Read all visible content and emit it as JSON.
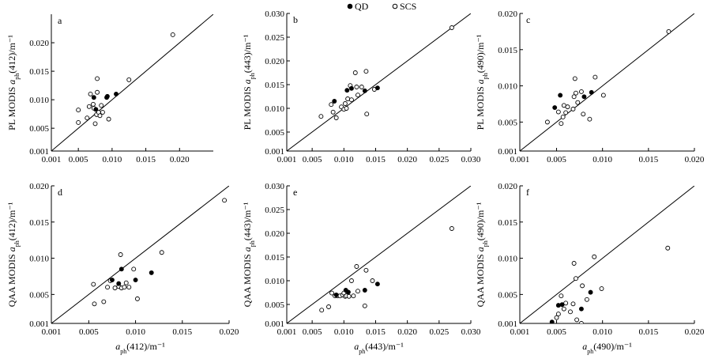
{
  "legend": {
    "items": [
      {
        "label": "QD",
        "marker": "filled-circle"
      },
      {
        "label": "SCS",
        "marker": "open-circle"
      }
    ],
    "placement": "top-center"
  },
  "chart_data": [
    {
      "panel": "a",
      "type": "scatter",
      "xlabel": "",
      "ylabel": "PL MODIS a_ph(412)/m⁻¹",
      "xlim": [
        0.001,
        0.025
      ],
      "ylim": [
        0.001,
        0.025
      ],
      "xticks": [
        "0.001",
        "0.005",
        "0.010",
        "0.015",
        "0.020"
      ],
      "yticks": [
        "0.001",
        "0.005",
        "0.010",
        "0.015",
        "0.020"
      ],
      "one_to_one_line": true,
      "series": [
        {
          "name": "QD",
          "points": [
            [
              0.0073,
              0.0104
            ],
            [
              0.0076,
              0.0083
            ],
            [
              0.0092,
              0.0104
            ],
            [
              0.0093,
              0.0106
            ],
            [
              0.0106,
              0.011
            ]
          ]
        },
        {
          "name": "SCS",
          "points": [
            [
              0.005,
              0.006
            ],
            [
              0.005,
              0.0082
            ],
            [
              0.0063,
              0.0068
            ],
            [
              0.0066,
              0.0088
            ],
            [
              0.0068,
              0.011
            ],
            [
              0.0072,
              0.0092
            ],
            [
              0.0073,
              0.0085
            ],
            [
              0.0075,
              0.0058
            ],
            [
              0.0077,
              0.0074
            ],
            [
              0.0078,
              0.0113
            ],
            [
              0.0078,
              0.0137
            ],
            [
              0.008,
              0.0078
            ],
            [
              0.0082,
              0.0072
            ],
            [
              0.0084,
              0.009
            ],
            [
              0.0086,
              0.0078
            ],
            [
              0.0095,
              0.0066
            ],
            [
              0.0125,
              0.0135
            ],
            [
              0.019,
              0.0214
            ]
          ]
        }
      ]
    },
    {
      "panel": "b",
      "type": "scatter",
      "xlabel": "",
      "ylabel": "PL MODIS a_ph(443)/m⁻¹",
      "xlim": [
        0.001,
        0.03
      ],
      "ylim": [
        0.001,
        0.03
      ],
      "xticks": [
        "0.001",
        "0.005",
        "0.010",
        "0.015",
        "0.020",
        "0.025",
        "0.030"
      ],
      "yticks": [
        "0.001",
        "0.005",
        "0.010",
        "0.015",
        "0.020",
        "0.025",
        "0.030"
      ],
      "one_to_one_line": true,
      "series": [
        {
          "name": "QD",
          "points": [
            [
              0.0085,
              0.0115
            ],
            [
              0.0105,
              0.0138
            ],
            [
              0.0112,
              0.0142
            ],
            [
              0.0133,
              0.0137
            ],
            [
              0.0153,
              0.0143
            ]
          ]
        },
        {
          "name": "SCS",
          "points": [
            [
              0.0064,
              0.0083
            ],
            [
              0.008,
              0.0108
            ],
            [
              0.0083,
              0.0092
            ],
            [
              0.0088,
              0.008
            ],
            [
              0.0096,
              0.0103
            ],
            [
              0.01,
              0.0098
            ],
            [
              0.0102,
              0.011
            ],
            [
              0.0104,
              0.01
            ],
            [
              0.0106,
              0.012
            ],
            [
              0.011,
              0.0148
            ],
            [
              0.0112,
              0.0118
            ],
            [
              0.0118,
              0.0175
            ],
            [
              0.012,
              0.0145
            ],
            [
              0.0122,
              0.0128
            ],
            [
              0.0128,
              0.0145
            ],
            [
              0.0135,
              0.0178
            ],
            [
              0.0136,
              0.0088
            ],
            [
              0.0148,
              0.014
            ],
            [
              0.027,
              0.027
            ]
          ]
        }
      ]
    },
    {
      "panel": "c",
      "type": "scatter",
      "xlabel": "",
      "ylabel": "PL MODIS a_ph(490)/m⁻¹",
      "xlim": [
        0.001,
        0.02
      ],
      "ylim": [
        0.001,
        0.02
      ],
      "xticks": [
        "0.001",
        "0.005",
        "0.010",
        "0.015",
        "0.020"
      ],
      "yticks": [
        "0.001",
        "0.005",
        "0.010",
        "0.015",
        "0.020"
      ],
      "one_to_one_line": true,
      "series": [
        {
          "name": "QD",
          "points": [
            [
              0.0048,
              0.007
            ],
            [
              0.0054,
              0.0087
            ],
            [
              0.008,
              0.0085
            ],
            [
              0.0088,
              0.0091
            ]
          ]
        },
        {
          "name": "SCS",
          "points": [
            [
              0.004,
              0.005
            ],
            [
              0.0052,
              0.0064
            ],
            [
              0.0055,
              0.0048
            ],
            [
              0.0057,
              0.0057
            ],
            [
              0.0058,
              0.0073
            ],
            [
              0.006,
              0.0063
            ],
            [
              0.0062,
              0.0071
            ],
            [
              0.0068,
              0.0068
            ],
            [
              0.0069,
              0.0085
            ],
            [
              0.007,
              0.011
            ],
            [
              0.0071,
              0.009
            ],
            [
              0.0073,
              0.0077
            ],
            [
              0.0077,
              0.0092
            ],
            [
              0.0079,
              0.0061
            ],
            [
              0.0086,
              0.0054
            ],
            [
              0.0092,
              0.0112
            ],
            [
              0.0101,
              0.0087
            ],
            [
              0.0172,
              0.0175
            ]
          ]
        }
      ]
    },
    {
      "panel": "d",
      "type": "scatter",
      "xlabel": "a_ph(412)/m⁻¹",
      "ylabel": "QAA MODIS a_ph(412)/m⁻¹",
      "xlim": [
        0.001,
        0.02
      ],
      "ylim": [
        0.001,
        0.02
      ],
      "xticks": [
        "0.001",
        "0.005",
        "0.010",
        "0.015",
        "0.020"
      ],
      "yticks": [
        "0.001",
        "0.005",
        "0.010",
        "0.015",
        "0.020"
      ],
      "one_to_one_line": true,
      "series": [
        {
          "name": "QD",
          "points": [
            [
              0.0075,
              0.007
            ],
            [
              0.0082,
              0.0065
            ],
            [
              0.0085,
              0.0085
            ],
            [
              0.01,
              0.007
            ],
            [
              0.0117,
              0.008
            ]
          ]
        },
        {
          "name": "SCS",
          "points": [
            [
              0.0055,
              0.0064
            ],
            [
              0.0056,
              0.0037
            ],
            [
              0.0066,
              0.004
            ],
            [
              0.007,
              0.006
            ],
            [
              0.0073,
              0.0069
            ],
            [
              0.0078,
              0.0059
            ],
            [
              0.0082,
              0.0061
            ],
            [
              0.0084,
              0.0105
            ],
            [
              0.0085,
              0.0059
            ],
            [
              0.0088,
              0.006
            ],
            [
              0.009,
              0.0066
            ],
            [
              0.0093,
              0.006
            ],
            [
              0.0098,
              0.0085
            ],
            [
              0.0102,
              0.0044
            ],
            [
              0.0128,
              0.0108
            ],
            [
              0.0195,
              0.018
            ]
          ]
        }
      ]
    },
    {
      "panel": "e",
      "type": "scatter",
      "xlabel": "a_ph(443)/m⁻¹",
      "ylabel": "QAA MODIS a_ph(443)/m⁻¹",
      "xlim": [
        0.001,
        0.03
      ],
      "ylim": [
        0.001,
        0.03
      ],
      "xticks": [
        "0.001",
        "0.005",
        "0.010",
        "0.015",
        "0.020",
        "0.025",
        "0.030"
      ],
      "yticks": [
        "0.001",
        "0.005",
        "0.010",
        "0.015",
        "0.020",
        "0.025",
        "0.030"
      ],
      "one_to_one_line": true,
      "series": [
        {
          "name": "QD",
          "points": [
            [
              0.0088,
              0.007
            ],
            [
              0.0103,
              0.008
            ],
            [
              0.0107,
              0.0076
            ],
            [
              0.0133,
              0.008
            ],
            [
              0.0153,
              0.0093
            ]
          ]
        },
        {
          "name": "SCS",
          "points": [
            [
              0.0065,
              0.0038
            ],
            [
              0.0076,
              0.0045
            ],
            [
              0.0081,
              0.0074
            ],
            [
              0.0086,
              0.0068
            ],
            [
              0.009,
              0.0068
            ],
            [
              0.0094,
              0.0068
            ],
            [
              0.0098,
              0.007
            ],
            [
              0.01,
              0.0074
            ],
            [
              0.0102,
              0.0067
            ],
            [
              0.0104,
              0.0068
            ],
            [
              0.0108,
              0.0067
            ],
            [
              0.0112,
              0.01
            ],
            [
              0.0115,
              0.0068
            ],
            [
              0.012,
              0.013
            ],
            [
              0.0122,
              0.0078
            ],
            [
              0.0133,
              0.0047
            ],
            [
              0.0135,
              0.0122
            ],
            [
              0.0145,
              0.01
            ],
            [
              0.027,
              0.021
            ]
          ]
        }
      ]
    },
    {
      "panel": "f",
      "type": "scatter",
      "xlabel": "a_ph(490)/m⁻¹",
      "ylabel": "QAA MODIS a_ph(490)/m⁻¹",
      "xlim": [
        0.001,
        0.02
      ],
      "ylim": [
        0.001,
        0.02
      ],
      "xticks": [
        "0.001",
        "0.005",
        "0.010",
        "0.015",
        "0.020"
      ],
      "yticks": [
        "0.001",
        "0.005",
        "0.010",
        "0.015",
        "0.020"
      ],
      "one_to_one_line": true,
      "series": [
        {
          "name": "QD",
          "points": [
            [
              0.0045,
              0.0012
            ],
            [
              0.0052,
              0.0035
            ],
            [
              0.0056,
              0.0036
            ],
            [
              0.0077,
              0.003
            ],
            [
              0.0087,
              0.0053
            ]
          ]
        },
        {
          "name": "SCS",
          "points": [
            [
              0.0039,
              0.0005
            ],
            [
              0.005,
              0.0018
            ],
            [
              0.0052,
              0.0023
            ],
            [
              0.0055,
              0.0048
            ],
            [
              0.0056,
              0.0006
            ],
            [
              0.0058,
              0.003
            ],
            [
              0.006,
              0.0038
            ],
            [
              0.0065,
              0.0026
            ],
            [
              0.0068,
              0.0037
            ],
            [
              0.0069,
              0.0093
            ],
            [
              0.0071,
              0.0072
            ],
            [
              0.0072,
              0.0015
            ],
            [
              0.0077,
              0.001
            ],
            [
              0.0078,
              0.0062
            ],
            [
              0.0083,
              0.0043
            ],
            [
              0.0091,
              0.0102
            ],
            [
              0.0099,
              0.0058
            ],
            [
              0.0171,
              0.0114
            ]
          ]
        }
      ]
    }
  ]
}
